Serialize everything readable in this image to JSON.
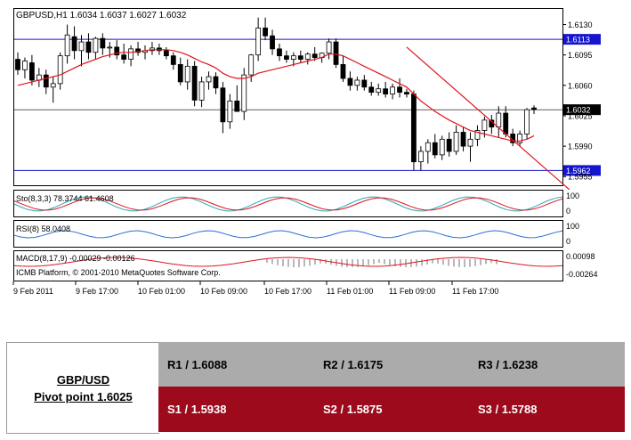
{
  "header": {
    "symbol_line": "GBPUSD,H1  1.6034 1.6037 1.6027 1.6032"
  },
  "chart_data": {
    "type": "candlestick",
    "symbol": "GBPUSD",
    "timeframe": "H1",
    "ohlc_header": [
      1.6034,
      1.6037,
      1.6027,
      1.6032
    ],
    "ylim": [
      1.5945,
      1.6148
    ],
    "y_ticks": [
      "1.6130",
      "1.6095",
      "1.6060",
      "1.6025",
      "1.5990",
      "1.5955"
    ],
    "x_ticks": [
      "9 Feb 2011",
      "9 Feb 17:00",
      "10 Feb 01:00",
      "10 Feb 09:00",
      "10 Feb 17:00",
      "11 Feb 01:00",
      "11 Feb 09:00",
      "11 Feb 17:00"
    ],
    "candles": [
      [
        1.609,
        1.6098,
        1.6072,
        1.6078
      ],
      [
        1.6078,
        1.6092,
        1.6068,
        1.6088
      ],
      [
        1.6086,
        1.6095,
        1.606,
        1.6066
      ],
      [
        1.6066,
        1.608,
        1.6058,
        1.6072
      ],
      [
        1.6072,
        1.6078,
        1.605,
        1.6058
      ],
      [
        1.6058,
        1.607,
        1.604,
        1.6062
      ],
      [
        1.6062,
        1.6098,
        1.6055,
        1.6094
      ],
      [
        1.6094,
        1.613,
        1.6085,
        1.6118
      ],
      [
        1.6116,
        1.6128,
        1.609,
        1.61
      ],
      [
        1.61,
        1.6118,
        1.6082,
        1.611
      ],
      [
        1.611,
        1.612,
        1.609,
        1.6098
      ],
      [
        1.6098,
        1.6116,
        1.609,
        1.6114
      ],
      [
        1.6114,
        1.612,
        1.6095,
        1.6103
      ],
      [
        1.6103,
        1.611,
        1.6092,
        1.6104
      ],
      [
        1.6104,
        1.6112,
        1.609,
        1.6095
      ],
      [
        1.6095,
        1.6108,
        1.6085,
        1.609
      ],
      [
        1.609,
        1.6106,
        1.6082,
        1.6102
      ],
      [
        1.6102,
        1.611,
        1.6094,
        1.6098
      ],
      [
        1.6098,
        1.6106,
        1.609,
        1.61
      ],
      [
        1.61,
        1.611,
        1.6095,
        1.6103
      ],
      [
        1.6103,
        1.6108,
        1.6095,
        1.61
      ],
      [
        1.61,
        1.6104,
        1.609,
        1.6094
      ],
      [
        1.6094,
        1.6098,
        1.6078,
        1.6084
      ],
      [
        1.6084,
        1.6092,
        1.606,
        1.6064
      ],
      [
        1.6064,
        1.609,
        1.6055,
        1.6082
      ],
      [
        1.6082,
        1.6088,
        1.6036,
        1.6043
      ],
      [
        1.6043,
        1.607,
        1.6035,
        1.6064
      ],
      [
        1.6064,
        1.6076,
        1.6055,
        1.607
      ],
      [
        1.607,
        1.6075,
        1.605,
        1.6057
      ],
      [
        1.6057,
        1.6064,
        1.6005,
        1.6018
      ],
      [
        1.6018,
        1.605,
        1.601,
        1.6042
      ],
      [
        1.6042,
        1.606,
        1.603,
        1.603
      ],
      [
        1.603,
        1.608,
        1.602,
        1.6072
      ],
      [
        1.6072,
        1.6096,
        1.6064,
        1.6095
      ],
      [
        1.6095,
        1.6138,
        1.6088,
        1.6126
      ],
      [
        1.6126,
        1.6138,
        1.6112,
        1.6117
      ],
      [
        1.6117,
        1.6124,
        1.6095,
        1.6102
      ],
      [
        1.6102,
        1.6108,
        1.6088,
        1.6094
      ],
      [
        1.6094,
        1.61,
        1.6086,
        1.609
      ],
      [
        1.609,
        1.6098,
        1.6082,
        1.6094
      ],
      [
        1.6094,
        1.61,
        1.6086,
        1.609
      ],
      [
        1.609,
        1.6098,
        1.6084,
        1.6096
      ],
      [
        1.6096,
        1.6104,
        1.6088,
        1.6092
      ],
      [
        1.6092,
        1.6098,
        1.6086,
        1.6097
      ],
      [
        1.6097,
        1.6114,
        1.609,
        1.611
      ],
      [
        1.611,
        1.6114,
        1.608,
        1.6084
      ],
      [
        1.6084,
        1.6094,
        1.6064,
        1.6068
      ],
      [
        1.6068,
        1.6076,
        1.6054,
        1.606
      ],
      [
        1.606,
        1.607,
        1.6054,
        1.6066
      ],
      [
        1.6066,
        1.6072,
        1.6054,
        1.6058
      ],
      [
        1.6058,
        1.6064,
        1.6048,
        1.6052
      ],
      [
        1.6052,
        1.6062,
        1.6048,
        1.6056
      ],
      [
        1.6056,
        1.6064,
        1.6046,
        1.605
      ],
      [
        1.605,
        1.6062,
        1.6044,
        1.6058
      ],
      [
        1.6058,
        1.6068,
        1.6046,
        1.6052
      ],
      [
        1.6052,
        1.6056,
        1.6046,
        1.605
      ],
      [
        1.605,
        1.6054,
        1.5962,
        1.5972
      ],
      [
        1.5972,
        1.599,
        1.5962,
        1.5984
      ],
      [
        1.5984,
        1.5998,
        1.597,
        1.5994
      ],
      [
        1.5994,
        1.6004,
        1.5976,
        1.598
      ],
      [
        1.598,
        1.6002,
        1.5974,
        1.5998
      ],
      [
        1.5998,
        1.6006,
        1.5978,
        1.5984
      ],
      [
        1.5984,
        1.6014,
        1.598,
        1.6006
      ],
      [
        1.6006,
        1.6012,
        1.5984,
        1.599
      ],
      [
        1.599,
        1.6006,
        1.5972,
        1.5998
      ],
      [
        1.5998,
        1.6014,
        1.599,
        1.6008
      ],
      [
        1.6008,
        1.6024,
        1.6,
        1.602
      ],
      [
        1.602,
        1.6026,
        1.6004,
        1.6012
      ],
      [
        1.6012,
        1.6036,
        1.6,
        1.6028
      ],
      [
        1.6028,
        1.6036,
        1.6,
        1.6004
      ],
      [
        1.6004,
        1.601,
        1.599,
        1.5994
      ],
      [
        1.5994,
        1.6008,
        1.599,
        1.6004
      ],
      [
        1.6004,
        1.6034,
        1.5998,
        1.6032
      ],
      [
        1.6034,
        1.6037,
        1.6027,
        1.6032
      ]
    ],
    "moving_average": [
      1.606,
      1.6062,
      1.6064,
      1.6066,
      1.6068,
      1.607,
      1.6072,
      1.6076,
      1.608,
      1.6084,
      1.6087,
      1.609,
      1.6093,
      1.6095,
      1.6097,
      1.6098,
      1.6098,
      1.6099,
      1.61,
      1.6101,
      1.6101,
      1.6101,
      1.61,
      1.6098,
      1.6095,
      1.6091,
      1.6087,
      1.6084,
      1.608,
      1.6074,
      1.607,
      1.6068,
      1.6068,
      1.607,
      1.6074,
      1.6076,
      1.6078,
      1.608,
      1.6082,
      1.6084,
      1.6086,
      1.6088,
      1.609,
      1.6092,
      1.6096,
      1.6096,
      1.6094,
      1.609,
      1.6086,
      1.6082,
      1.6078,
      1.6074,
      1.607,
      1.6066,
      1.6062,
      1.6058,
      1.605,
      1.6042,
      1.6036,
      1.603,
      1.6025,
      1.602,
      1.6016,
      1.6012,
      1.6008,
      1.6006,
      1.6004,
      1.6002,
      1.6,
      1.5998,
      1.5996,
      1.5996,
      1.5998,
      1.6002
    ],
    "trend_line": [
      [
        55,
        1.6104
      ],
      [
        78,
        1.594
      ]
    ],
    "h_lines": [
      {
        "value": 1.6113,
        "label": "1.6113",
        "color": "#1515cf"
      },
      {
        "value": 1.5962,
        "label": "1.5962",
        "color": "#1515cf"
      },
      {
        "value": 1.6032,
        "label": "1.6032",
        "color": "#000000"
      }
    ],
    "bull_color": "#ffffff",
    "bear_color": "#000000",
    "ma_color": "#e0141e",
    "indicators": {
      "stoch": {
        "label": "Sto(8,3,3) 78.3744 61.4608",
        "levels": [
          "100",
          "0"
        ],
        "ylim": [
          0,
          100
        ]
      },
      "rsi": {
        "label": "RSI(8) 58.0408",
        "levels": [
          "100",
          "0"
        ],
        "ylim": [
          0,
          100
        ]
      },
      "macd": {
        "label": "MACD(8,17,9) -0.00029 -0.00126",
        "levels": [
          "0.00098",
          "-0.00264"
        ]
      }
    },
    "watermark": "ICMB Platform, © 2001-2010 MetaQuotes Software Corp."
  },
  "pivot_table": {
    "pair": "GBP/USD",
    "pivot": "Pivot point 1.6025",
    "resistance": [
      "R1 / 1.6088",
      "R2 / 1.6175",
      "R3 / 1.6238"
    ],
    "support": [
      "S1 / 1.5938",
      "S2 / 1.5875",
      "S3 / 1.5788"
    ],
    "resistance_color": "#ababab",
    "support_color": "#9c0a1b"
  }
}
